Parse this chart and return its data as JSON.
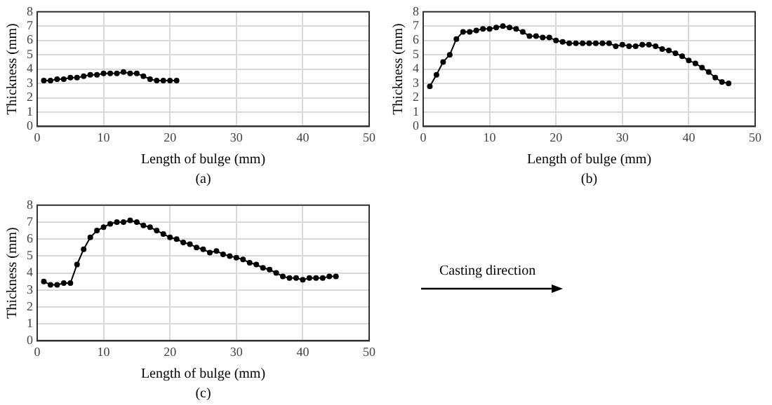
{
  "chart_data": [
    {
      "type": "line",
      "xlabel": "Length of bulge (mm)",
      "ylabel": "Thickness (mm)",
      "annotations": [
        "(a)"
      ],
      "x": [
        1,
        2,
        3,
        4,
        5,
        6,
        7,
        8,
        9,
        10,
        11,
        12,
        13,
        14,
        15,
        16,
        17,
        18,
        19,
        20,
        21
      ],
      "series": [
        {
          "color": "#000000",
          "values": [
            3.2,
            3.2,
            3.3,
            3.3,
            3.4,
            3.4,
            3.5,
            3.6,
            3.6,
            3.7,
            3.7,
            3.7,
            3.8,
            3.7,
            3.7,
            3.5,
            3.3,
            3.2,
            3.2,
            3.2,
            3.2
          ]
        }
      ],
      "xlim": [
        0,
        50
      ],
      "xticks": [
        0,
        10,
        20,
        30,
        40,
        50
      ],
      "ylim": [
        0,
        8
      ],
      "yticks": [
        0,
        1,
        2,
        3,
        4,
        5,
        6,
        7,
        8
      ],
      "grid": true,
      "marker": "circle",
      "line_style": "solid"
    },
    {
      "type": "line",
      "xlabel": "Length of bulge (mm)",
      "ylabel": "Thickness (mm)",
      "annotations": [
        "(b)"
      ],
      "x": [
        1,
        2,
        3,
        4,
        5,
        6,
        7,
        8,
        9,
        10,
        11,
        12,
        13,
        14,
        15,
        16,
        17,
        18,
        19,
        20,
        21,
        22,
        23,
        24,
        25,
        26,
        27,
        28,
        29,
        30,
        31,
        32,
        33,
        34,
        35,
        36,
        37,
        38,
        39,
        40,
        41,
        42,
        43,
        44,
        45,
        46
      ],
      "series": [
        {
          "color": "#000000",
          "values": [
            2.8,
            3.6,
            4.5,
            5.0,
            6.1,
            6.6,
            6.6,
            6.7,
            6.8,
            6.8,
            6.9,
            7.0,
            6.9,
            6.8,
            6.6,
            6.3,
            6.3,
            6.2,
            6.2,
            6.0,
            5.9,
            5.8,
            5.8,
            5.8,
            5.8,
            5.8,
            5.8,
            5.8,
            5.6,
            5.7,
            5.6,
            5.6,
            5.7,
            5.7,
            5.6,
            5.4,
            5.3,
            5.1,
            4.9,
            4.6,
            4.4,
            4.1,
            3.8,
            3.4,
            3.1,
            3.0
          ]
        }
      ],
      "xlim": [
        0,
        50
      ],
      "xticks": [
        0,
        10,
        20,
        30,
        40,
        50
      ],
      "ylim": [
        0,
        8
      ],
      "yticks": [
        0,
        1,
        2,
        3,
        4,
        5,
        6,
        7,
        8
      ],
      "grid": true,
      "marker": "circle",
      "line_style": "solid"
    },
    {
      "type": "line",
      "xlabel": "Length of bulge (mm)",
      "ylabel": "Thickness (mm)",
      "annotations": [
        "(c)"
      ],
      "x": [
        1,
        2,
        3,
        4,
        5,
        6,
        7,
        8,
        9,
        10,
        11,
        12,
        13,
        14,
        15,
        16,
        17,
        18,
        19,
        20,
        21,
        22,
        23,
        24,
        25,
        26,
        27,
        28,
        29,
        30,
        31,
        32,
        33,
        34,
        35,
        36,
        37,
        38,
        39,
        40,
        41,
        42,
        43,
        44,
        45
      ],
      "series": [
        {
          "color": "#000000",
          "values": [
            3.5,
            3.3,
            3.3,
            3.4,
            3.4,
            4.5,
            5.4,
            6.1,
            6.5,
            6.7,
            6.9,
            7.0,
            7.0,
            7.1,
            7.0,
            6.8,
            6.7,
            6.5,
            6.3,
            6.1,
            6.0,
            5.8,
            5.7,
            5.5,
            5.4,
            5.2,
            5.3,
            5.1,
            5.0,
            4.9,
            4.8,
            4.6,
            4.5,
            4.3,
            4.2,
            4.0,
            3.8,
            3.7,
            3.7,
            3.6,
            3.7,
            3.7,
            3.7,
            3.8,
            3.8
          ]
        }
      ],
      "xlim": [
        0,
        50
      ],
      "xticks": [
        0,
        10,
        20,
        30,
        40,
        50
      ],
      "ylim": [
        0,
        8
      ],
      "yticks": [
        0,
        1,
        2,
        3,
        4,
        5,
        6,
        7,
        8
      ],
      "grid": true,
      "marker": "circle",
      "line_style": "solid"
    },
    {
      "type": "other",
      "annotations": [
        "Casting direction"
      ]
    }
  ]
}
